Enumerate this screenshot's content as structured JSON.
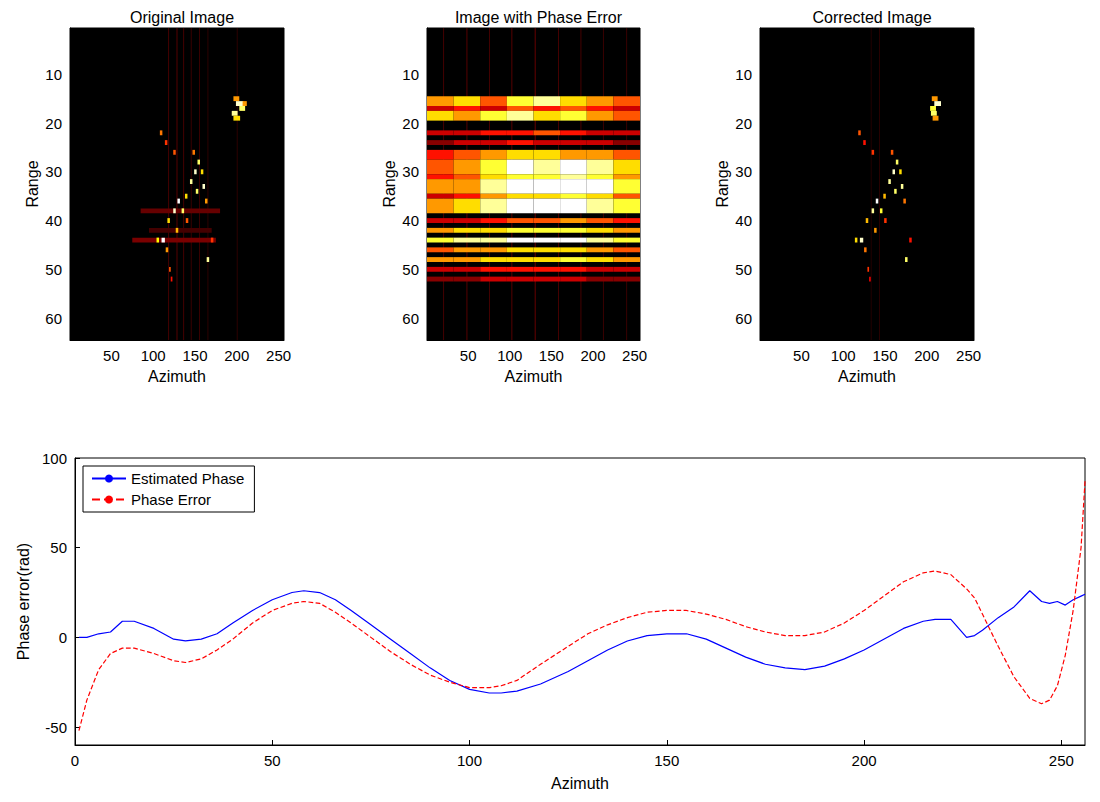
{
  "chart_data": [
    {
      "type": "heatmap",
      "title": "Original Image",
      "x_label": "Azimuth",
      "y_label": "Range",
      "xlim": [
        0.5,
        256.5
      ],
      "xticks": [
        50,
        100,
        150,
        200,
        250
      ],
      "ylim": [
        64.5,
        0.5
      ],
      "yticks": [
        10,
        20,
        30,
        40,
        50,
        60
      ],
      "color_range": [
        0,
        1
      ],
      "cells": [
        [
          118,
          119,
          0.5,
          64.5,
          0.12
        ],
        [
          128,
          129,
          0.5,
          64.5,
          0.15
        ],
        [
          136,
          137,
          0.5,
          64.5,
          0.12
        ],
        [
          145,
          146,
          0.5,
          64.5,
          0.1
        ],
        [
          155,
          156,
          0.5,
          64.5,
          0.1
        ],
        [
          165,
          166,
          0.5,
          64.5,
          0.08
        ],
        [
          200,
          201,
          0.5,
          64.5,
          0.08
        ],
        [
          85,
          180,
          37.5,
          38.5,
          0.15
        ],
        [
          75,
          175,
          43.5,
          44.5,
          0.18
        ],
        [
          95,
          170,
          41.5,
          42.5,
          0.1
        ],
        [
          196,
          203,
          14.5,
          15.5,
          0.6
        ],
        [
          199,
          208,
          15.5,
          16.5,
          0.95
        ],
        [
          203,
          210,
          16.5,
          17.5,
          0.85
        ],
        [
          194,
          201,
          17.5,
          18.5,
          0.9
        ],
        [
          196,
          204,
          18.5,
          19.5,
          0.7
        ],
        [
          207,
          212,
          15.5,
          16.5,
          0.6
        ],
        [
          108,
          111,
          21.5,
          22.5,
          0.55
        ],
        [
          114,
          117,
          23.5,
          24.5,
          0.45
        ],
        [
          124,
          127,
          25.5,
          26.5,
          0.5
        ],
        [
          147,
          150,
          25.5,
          26.5,
          0.55
        ],
        [
          153,
          156,
          27.5,
          28.5,
          0.85
        ],
        [
          149,
          152,
          29.5,
          30.5,
          0.95
        ],
        [
          157,
          160,
          29.5,
          30.5,
          0.7
        ],
        [
          144,
          147,
          31.5,
          32.5,
          0.9
        ],
        [
          159,
          162,
          32.5,
          33.5,
          0.95
        ],
        [
          151,
          154,
          33.5,
          34.5,
          0.85
        ],
        [
          138,
          141,
          34.5,
          35.5,
          0.7
        ],
        [
          129,
          132,
          35.5,
          36.5,
          1.0
        ],
        [
          134,
          137,
          37.5,
          38.5,
          0.85
        ],
        [
          124,
          127,
          37.5,
          38.5,
          0.95
        ],
        [
          162,
          165,
          35.5,
          36.5,
          0.6
        ],
        [
          117,
          120,
          39.5,
          40.5,
          0.7
        ],
        [
          139,
          142,
          39.5,
          40.5,
          0.5
        ],
        [
          127,
          130,
          41.5,
          42.5,
          0.65
        ],
        [
          104,
          107,
          43.5,
          44.5,
          0.75
        ],
        [
          110,
          114,
          43.5,
          44.5,
          1.0
        ],
        [
          169,
          172,
          43.5,
          44.5,
          0.45
        ],
        [
          115,
          118,
          45.5,
          46.5,
          0.6
        ],
        [
          164,
          167,
          47.5,
          48.5,
          0.9
        ],
        [
          119,
          121,
          49.5,
          50.5,
          0.5
        ],
        [
          121,
          123,
          51.5,
          52.5,
          0.4
        ]
      ]
    },
    {
      "type": "heatmap",
      "title": "Image with Phase Error",
      "x_label": "Azimuth",
      "y_label": "Range",
      "xlim": [
        0.5,
        256.5
      ],
      "xticks": [
        50,
        100,
        150,
        200,
        250
      ],
      "ylim": [
        64.5,
        0.5
      ],
      "yticks": [
        10,
        20,
        30,
        40,
        50,
        60
      ],
      "color_range": [
        0,
        1
      ],
      "cells": [
        [
          20,
          21,
          0.5,
          64.5,
          0.12
        ],
        [
          48,
          49,
          0.5,
          64.5,
          0.15
        ],
        [
          75,
          76,
          0.5,
          64.5,
          0.12
        ],
        [
          102,
          103,
          0.5,
          64.5,
          0.15
        ],
        [
          130,
          131,
          0.5,
          64.5,
          0.18
        ],
        [
          158,
          159,
          0.5,
          64.5,
          0.12
        ],
        [
          185,
          186,
          0.5,
          64.5,
          0.12
        ],
        [
          212,
          213,
          0.5,
          64.5,
          0.1
        ],
        [
          240,
          241,
          0.5,
          64.5,
          0.1
        ]
      ],
      "x_edges": [
        0.5,
        32.5,
        64.5,
        96.5,
        128.5,
        160.5,
        192.5,
        224.5,
        256.5
      ],
      "bands": [
        {
          "y": [
            14.5,
            16.5
          ],
          "values": [
            0.6,
            0.7,
            0.5,
            0.8,
            0.9,
            0.7,
            0.6,
            0.5
          ]
        },
        {
          "y": [
            16.5,
            17.5
          ],
          "values": [
            0.3,
            0.4,
            0.3,
            0.5,
            0.4,
            0.5,
            0.4,
            0.3
          ]
        },
        {
          "y": [
            17.5,
            19.5
          ],
          "values": [
            0.7,
            0.6,
            0.8,
            0.9,
            0.7,
            0.8,
            0.6,
            0.5
          ]
        },
        {
          "y": [
            21.5,
            22.5
          ],
          "values": [
            0.3,
            0.3,
            0.4,
            0.4,
            0.5,
            0.4,
            0.3,
            0.3
          ]
        },
        {
          "y": [
            23.5,
            24.5
          ],
          "values": [
            0.2,
            0.3,
            0.3,
            0.4,
            0.3,
            0.3,
            0.3,
            0.2
          ]
        },
        {
          "y": [
            25.5,
            27.5
          ],
          "values": [
            0.4,
            0.5,
            0.6,
            0.7,
            0.7,
            0.6,
            0.6,
            0.5
          ]
        },
        {
          "y": [
            27.5,
            30.5
          ],
          "values": [
            0.5,
            0.6,
            0.8,
            1.0,
            0.9,
            1.0,
            0.9,
            0.7
          ]
        },
        {
          "y": [
            30.5,
            31.5
          ],
          "values": [
            0.4,
            0.5,
            0.7,
            0.8,
            0.8,
            0.9,
            0.8,
            0.6
          ]
        },
        {
          "y": [
            31.5,
            34.5
          ],
          "values": [
            0.6,
            0.6,
            0.9,
            1.0,
            1.0,
            1.0,
            1.0,
            0.8
          ]
        },
        {
          "y": [
            34.5,
            35.5
          ],
          "values": [
            0.3,
            0.4,
            0.6,
            0.7,
            0.7,
            0.8,
            0.7,
            0.5
          ]
        },
        {
          "y": [
            35.5,
            38.5
          ],
          "values": [
            0.6,
            0.7,
            0.9,
            1.0,
            1.0,
            1.0,
            0.9,
            0.8
          ]
        },
        {
          "y": [
            39.5,
            40.5
          ],
          "values": [
            0.3,
            0.3,
            0.4,
            0.5,
            0.5,
            0.6,
            0.5,
            0.4
          ]
        },
        {
          "y": [
            41.5,
            42.5
          ],
          "values": [
            0.6,
            0.7,
            0.7,
            0.8,
            0.8,
            0.8,
            0.7,
            0.6
          ]
        },
        {
          "y": [
            43.5,
            44.5
          ],
          "values": [
            0.8,
            0.9,
            0.9,
            1.0,
            1.0,
            1.0,
            0.9,
            0.8
          ]
        },
        {
          "y": [
            45.5,
            46.5
          ],
          "values": [
            0.5,
            0.6,
            0.6,
            0.7,
            0.7,
            0.7,
            0.6,
            0.5
          ]
        },
        {
          "y": [
            47.5,
            48.5
          ],
          "values": [
            0.6,
            0.6,
            0.7,
            0.7,
            0.7,
            0.8,
            0.7,
            0.6
          ]
        },
        {
          "y": [
            49.5,
            50.5
          ],
          "values": [
            0.3,
            0.3,
            0.4,
            0.4,
            0.4,
            0.4,
            0.3,
            0.3
          ]
        },
        {
          "y": [
            51.5,
            52.5
          ],
          "values": [
            0.2,
            0.2,
            0.3,
            0.3,
            0.3,
            0.3,
            0.2,
            0.2
          ]
        }
      ]
    },
    {
      "type": "heatmap",
      "title": "Corrected Image",
      "x_label": "Azimuth",
      "y_label": "Range",
      "xlim": [
        0.5,
        256.5
      ],
      "xticks": [
        50,
        100,
        150,
        200,
        250
      ],
      "ylim": [
        64.5,
        0.5
      ],
      "yticks": [
        10,
        20,
        30,
        40,
        50,
        60
      ],
      "color_range": [
        0,
        1
      ],
      "cells": [
        [
          133,
          134,
          0.5,
          64.5,
          0.06
        ],
        [
          143,
          144,
          0.5,
          64.5,
          0.07
        ],
        [
          206,
          213,
          14.5,
          15.5,
          0.6
        ],
        [
          209,
          217,
          15.5,
          16.5,
          0.95
        ],
        [
          204,
          211,
          16.5,
          17.5,
          0.8
        ],
        [
          205,
          212,
          17.5,
          18.5,
          0.85
        ],
        [
          207,
          214,
          18.5,
          19.5,
          0.6
        ],
        [
          118,
          121,
          21.5,
          22.5,
          0.5
        ],
        [
          124,
          127,
          23.5,
          24.5,
          0.4
        ],
        [
          134,
          137,
          25.5,
          26.5,
          0.45
        ],
        [
          157,
          160,
          25.5,
          26.5,
          0.5
        ],
        [
          163,
          166,
          27.5,
          28.5,
          0.85
        ],
        [
          159,
          162,
          29.5,
          30.5,
          0.95
        ],
        [
          167,
          170,
          29.5,
          30.5,
          0.7
        ],
        [
          154,
          157,
          31.5,
          32.5,
          0.9
        ],
        [
          169,
          172,
          32.5,
          33.5,
          0.9
        ],
        [
          161,
          164,
          33.5,
          34.5,
          0.85
        ],
        [
          148,
          151,
          34.5,
          35.5,
          0.65
        ],
        [
          139,
          142,
          35.5,
          36.5,
          1.0
        ],
        [
          144,
          147,
          37.5,
          38.5,
          0.8
        ],
        [
          134,
          137,
          37.5,
          38.5,
          0.9
        ],
        [
          172,
          175,
          35.5,
          36.5,
          0.55
        ],
        [
          127,
          130,
          39.5,
          40.5,
          0.65
        ],
        [
          149,
          152,
          39.5,
          40.5,
          0.45
        ],
        [
          137,
          140,
          41.5,
          42.5,
          0.6
        ],
        [
          114,
          117,
          43.5,
          44.5,
          0.7
        ],
        [
          120,
          124,
          43.5,
          44.5,
          0.95
        ],
        [
          179,
          182,
          43.5,
          44.5,
          0.4
        ],
        [
          125,
          128,
          45.5,
          46.5,
          0.55
        ],
        [
          174,
          177,
          47.5,
          48.5,
          0.85
        ],
        [
          129,
          131,
          49.5,
          50.5,
          0.45
        ],
        [
          131,
          133,
          51.5,
          52.5,
          0.35
        ]
      ]
    },
    {
      "type": "line",
      "x_label": "Azimuth",
      "y_label": "Phase error(rad)",
      "xlim": [
        0,
        256
      ],
      "xticks": [
        0,
        50,
        100,
        150,
        200,
        250
      ],
      "ylim": [
        -60,
        100
      ],
      "yticks": [
        -50,
        0,
        50,
        100
      ],
      "grid": false,
      "legend": "upper left",
      "x": [
        1,
        3,
        6,
        9,
        12,
        15,
        20,
        25,
        28,
        32,
        36,
        40,
        45,
        50,
        55,
        58,
        62,
        66,
        70,
        75,
        80,
        85,
        90,
        95,
        100,
        105,
        108,
        112,
        118,
        125,
        130,
        135,
        140,
        145,
        150,
        155,
        160,
        165,
        170,
        175,
        180,
        185,
        190,
        195,
        200,
        205,
        210,
        215,
        218,
        222,
        226,
        228,
        230,
        234,
        238,
        242,
        245,
        247,
        249,
        251,
        253,
        255,
        256
      ],
      "series": [
        {
          "name": "Estimated Phase",
          "color": "#0000ff",
          "line_style": "solid",
          "values": [
            0,
            0,
            2,
            3,
            9,
            9,
            5,
            -1,
            -2,
            -1,
            2,
            8,
            15,
            21,
            25,
            26,
            25,
            21,
            15,
            7,
            -1,
            -9,
            -17,
            -24,
            -29,
            -31,
            -31,
            -30,
            -26,
            -19,
            -13,
            -7,
            -2,
            1,
            2,
            2,
            -1,
            -6,
            -11,
            -15,
            -17,
            -18,
            -16,
            -12,
            -7,
            -1,
            5,
            9,
            10,
            10,
            0,
            1,
            4,
            11,
            17,
            26,
            20,
            19,
            20,
            18,
            21,
            23,
            24
          ]
        },
        {
          "name": "Phase Error",
          "color": "#ff0000",
          "line_style": "dashed",
          "values": [
            -52,
            -35,
            -18,
            -9,
            -6,
            -6,
            -9,
            -13,
            -14,
            -12,
            -7,
            -1,
            8,
            15,
            19,
            20,
            19,
            14,
            8,
            0,
            -8,
            -15,
            -21,
            -25,
            -28,
            -28,
            -27,
            -24,
            -15,
            -5,
            2,
            7,
            11,
            14,
            15,
            15,
            13,
            10,
            6,
            3,
            1,
            1,
            3,
            8,
            15,
            23,
            31,
            36,
            37,
            35,
            27,
            22,
            13,
            -5,
            -22,
            -34,
            -37,
            -35,
            -27,
            -10,
            15,
            50,
            87
          ]
        }
      ]
    }
  ]
}
